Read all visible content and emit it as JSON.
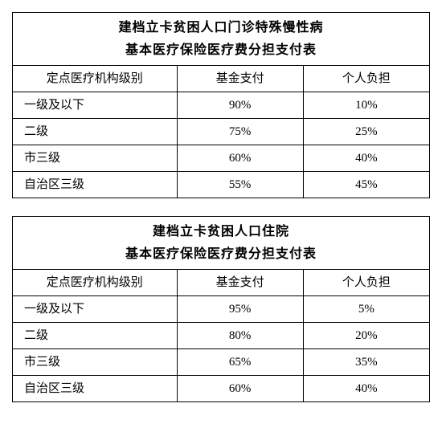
{
  "tables": [
    {
      "title1": "建档立卡贫困人口门诊特殊慢性病",
      "title2": "基本医疗保险医疗费分担支付表",
      "headers": {
        "level": "定点医疗机构级别",
        "fund": "基金支付",
        "self": "个人负担"
      },
      "rows": [
        {
          "level": "一级及以下",
          "fund": "90%",
          "self": "10%"
        },
        {
          "level": "二级",
          "fund": "75%",
          "self": "25%"
        },
        {
          "level": "市三级",
          "fund": "60%",
          "self": "40%"
        },
        {
          "level": "自治区三级",
          "fund": "55%",
          "self": "45%"
        }
      ]
    },
    {
      "title1": "建档立卡贫困人口住院",
      "title2": "基本医疗保险医疗费分担支付表",
      "headers": {
        "level": "定点医疗机构级别",
        "fund": "基金支付",
        "self": "个人负担"
      },
      "rows": [
        {
          "level": "一级及以下",
          "fund": "95%",
          "self": "5%"
        },
        {
          "level": "二级",
          "fund": "80%",
          "self": "20%"
        },
        {
          "level": "市三级",
          "fund": "65%",
          "self": "35%"
        },
        {
          "level": "自治区三级",
          "fund": "60%",
          "self": "40%"
        }
      ]
    }
  ],
  "style": {
    "border_color": "#000000",
    "background_color": "#ffffff",
    "title_fontsize": 16,
    "cell_fontsize": 15,
    "col_widths_pct": [
      40,
      30,
      30
    ]
  }
}
